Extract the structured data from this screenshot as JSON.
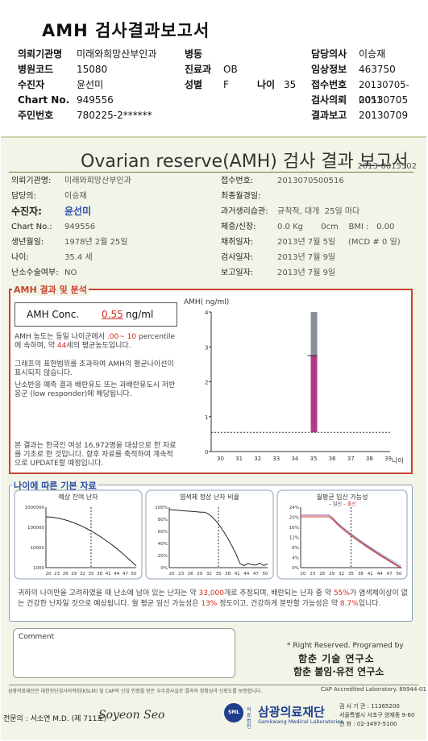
{
  "report_title": "AMH 검사결과보고서",
  "header": {
    "hospital_label": "의뢰기관명",
    "hospital_value": "미래와희망산부인과",
    "ward_label": "병동",
    "ward_value": "",
    "doctor_label": "담당의사",
    "doctor_value": "이승재",
    "code_label": "병원코드",
    "code_value": "15080",
    "dept_label": "진료과",
    "dept_value": "OB",
    "clinic_label": "임상정보",
    "clinic_value": "463750",
    "patient_label": "수진자",
    "patient_value": "윤선미",
    "sex_label": "성별",
    "sex_value": "F",
    "age_label": "나이",
    "age_value": "35",
    "accept_label": "접수번호",
    "accept_value": "20130705-0051",
    "chart_label": "Chart No.",
    "chart_value": "949556",
    "req_label": "검사의뢰",
    "req_value": "20130705",
    "id_label": "주민번호",
    "id_value": "780225-2******",
    "result_label": "결과보고",
    "result_value": "20130709"
  },
  "report": {
    "title": "Ovarian reserve(AMH) 검사 결과 보고서",
    "report_no": "2013-0015502",
    "hospital_label": "의뢰기관명:",
    "hospital_value": "미래와희망산부인과",
    "doctor_label": "담당의:",
    "doctor_value": "이승재",
    "patient_label": "수진자:",
    "patient_value": "윤선미",
    "chart_label": "Chart No.:",
    "chart_value": "949556",
    "birth_label": "생년월일:",
    "birth_value": "1978년 2월 25일",
    "age_label": "나이:",
    "age_value": "35.4 세",
    "surgery_label": "난소수술여부:",
    "surgery_value": "NO",
    "accept_label": "접수번호:",
    "accept_value": "2013070500516",
    "lmp_label": "최종월경일:",
    "lmp_value": "",
    "history_label": "과거생리습관:",
    "history_value": "규칙적, 대개  25일 마다",
    "body_label": "체중/신장:",
    "body_value": "0.0 Kg       0cm    BMI :   0.00",
    "collect_label": "채취일자:",
    "collect_value": "2013년 7월 5일     (MCD # 0 일)",
    "test_label": "검사일자:",
    "test_value": "2013년 7월 9일",
    "report_label": "보고일자:",
    "report_value": "2013년 7월 9일"
  },
  "amh": {
    "section_title": "AMH 결과 및 분석",
    "conc_label": "AMH Conc.",
    "conc_value": "0.55",
    "conc_unit": "ng/ml",
    "p1a": "AMH 농도는 동일 나이군에서 ",
    "p1b": ".00~ 10",
    "p1c": "percentile에 속하며, 약 ",
    "p1d": "44",
    "p1e": "세의 평균농도입니다.",
    "p2": "그래프의 표현범위를 초과하여 AMH의 평균나이선이 표시되지 않습니다.",
    "p3": "난소반응 예측 결과 배란유도 또는 과배란유도시 저반응군 (low responder)에 해당됩니다.",
    "p4": "본 결과는 한국인 여성 16,972명을 대상으로 한 자료를 기초로 한 것입니다. 향후 자료를 축적하여 계속적으로 UPDATE할 예정입니다."
  },
  "chart_data": [
    {
      "type": "bar",
      "title": "",
      "ylabel": "AMH( ng/ml)",
      "xlabel": "나이",
      "ylim": [
        0,
        4
      ],
      "yticks": [
        "4",
        "3",
        "2",
        "1",
        "0"
      ],
      "categories": [
        "30",
        "31",
        "32",
        "33",
        "34",
        "35",
        "36",
        "37",
        "38",
        "39"
      ],
      "series": [
        {
          "name": "",
          "x": 35,
          "low": 0.55,
          "high": 2.75,
          "top": 4.0
        }
      ],
      "patient_value": 0.55
    },
    {
      "type": "line",
      "title": "예상 잔여 난자",
      "yscale": "log",
      "yticks": [
        "1000000",
        "100000",
        "10000",
        "1000"
      ],
      "xticks": [
        "20",
        "23",
        "26",
        "29",
        "32",
        "35",
        "38",
        "41",
        "44",
        "47",
        "50"
      ]
    },
    {
      "type": "line",
      "title": "염색체 정상 난자 비율",
      "yticks": [
        "100%",
        "80%",
        "60%",
        "40%",
        "20%",
        "0%"
      ],
      "xticks": [
        "20",
        "23",
        "26",
        "29",
        "32",
        "35",
        "38",
        "41",
        "44",
        "47",
        "50"
      ]
    },
    {
      "type": "line",
      "title": "월평균 임신 가능성",
      "legend": [
        "임신",
        "출산"
      ],
      "yticks": [
        "24%",
        "20%",
        "16%",
        "12%",
        "8%",
        "4%",
        "0%"
      ],
      "xticks": [
        "20",
        "23",
        "26",
        "29",
        "32",
        "35",
        "38",
        "41",
        "44",
        "47",
        "50"
      ]
    }
  ],
  "age_section": {
    "title": "나이에 따른 기본 자료",
    "summary_a": "귀하의 나이만을 고려하였을 때 난소에 남아 있는 난자는 약 ",
    "summary_b": "33,000",
    "summary_c": "개로 추정되며, 배란되는 난자 중 약 ",
    "summary_d": "55%",
    "summary_e": "가 염색체이상이 없는 건강한 난자일 것으로 예상됩니다. 월 평균 임신 가능성은 ",
    "summary_f": "13%",
    "summary_g": " 정도이고, 건강하게 분만할 가능성은 약 ",
    "summary_h": "8.7%",
    "summary_i": "입니다."
  },
  "comment_label": "Comment",
  "rights": "* Right Reserved. Programed by",
  "lab1": "함춘 기술 연구소",
  "lab2": "함춘 불임·유전 연구소",
  "footer_note": "삼광의료재단은 대한진단검사의학회(KSLM) 및 CAP의 신임 인증을 받은 우수검사실로 결과의 정확성과 신뢰도를 보증합니다.",
  "cap": "CAP Accredited Laboratory.  89944-01",
  "signer": "전문의 : 서소연 M.D. (제 711호)",
  "signature": "Soyeon Seo",
  "org_name": "삼광의료재단",
  "org_prefix": "의료 법인",
  "org_en": "Samkwang Medical Laboratories",
  "org_info1": "검 사 기 관 : 11365200",
  "org_info2": "서울특별시 서초구 양재동 9-60",
  "org_info3": "전  화 : 02-3497-5100",
  "org_logo": "SML"
}
